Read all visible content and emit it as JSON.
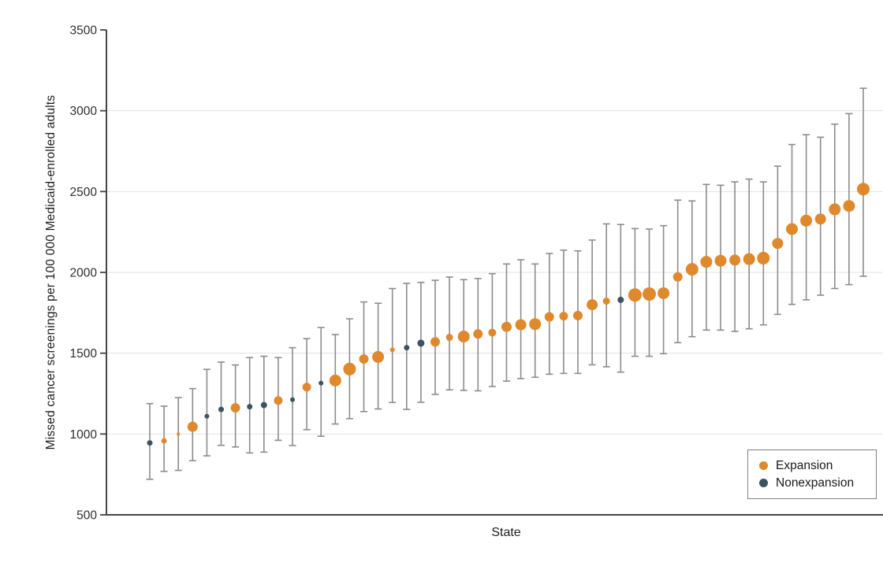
{
  "chart_data": {
    "type": "scatter",
    "title": "",
    "xlabel": "State",
    "ylabel": "Missed cancer screenings per 100 000 Medicaid-enrolled adults",
    "ylim": [
      500,
      3500
    ],
    "yticks": [
      500,
      1000,
      1500,
      2000,
      2500,
      3000,
      3500
    ],
    "grid": "horizontal-light-gray",
    "colors": {
      "expansion": "#E0892C",
      "nonexpansion": "#3B5462",
      "error_bar": "#8C8C8C",
      "axis": "#444444",
      "gridline": "#E3E3E3",
      "tick_label": "#2E2E2E"
    },
    "legend": {
      "position": "bottom-right",
      "items": [
        {
          "label": "Expansion",
          "group": "expansion"
        },
        {
          "label": "Nonexpansion",
          "group": "nonexpansion"
        }
      ]
    },
    "points": [
      {
        "group": "nonexpansion",
        "value": 945,
        "ci_low": 720,
        "ci_high": 1188,
        "size": 7
      },
      {
        "group": "expansion",
        "value": 958,
        "ci_low": 769,
        "ci_high": 1172,
        "size": 7
      },
      {
        "group": "expansion",
        "value": 1000,
        "ci_low": 775,
        "ci_high": 1225,
        "size": 4
      },
      {
        "group": "expansion",
        "value": 1045,
        "ci_low": 835,
        "ci_high": 1281,
        "size": 13
      },
      {
        "group": "nonexpansion",
        "value": 1110,
        "ci_low": 865,
        "ci_high": 1400,
        "size": 6
      },
      {
        "group": "nonexpansion",
        "value": 1152,
        "ci_low": 930,
        "ci_high": 1445,
        "size": 7
      },
      {
        "group": "expansion",
        "value": 1162,
        "ci_low": 920,
        "ci_high": 1427,
        "size": 12
      },
      {
        "group": "nonexpansion",
        "value": 1169,
        "ci_low": 883,
        "ci_high": 1473,
        "size": 7
      },
      {
        "group": "nonexpansion",
        "value": 1179,
        "ci_low": 888,
        "ci_high": 1481,
        "size": 8
      },
      {
        "group": "expansion",
        "value": 1207,
        "ci_low": 961,
        "ci_high": 1473,
        "size": 11
      },
      {
        "group": "nonexpansion",
        "value": 1212,
        "ci_low": 929,
        "ci_high": 1534,
        "size": 6
      },
      {
        "group": "expansion",
        "value": 1290,
        "ci_low": 1027,
        "ci_high": 1590,
        "size": 11
      },
      {
        "group": "nonexpansion",
        "value": 1315,
        "ci_low": 986,
        "ci_high": 1659,
        "size": 6
      },
      {
        "group": "expansion",
        "value": 1331,
        "ci_low": 1062,
        "ci_high": 1615,
        "size": 15
      },
      {
        "group": "expansion",
        "value": 1402,
        "ci_low": 1095,
        "ci_high": 1713,
        "size": 16
      },
      {
        "group": "expansion",
        "value": 1464,
        "ci_low": 1139,
        "ci_high": 1817,
        "size": 12
      },
      {
        "group": "expansion",
        "value": 1477,
        "ci_low": 1155,
        "ci_high": 1809,
        "size": 15
      },
      {
        "group": "expansion",
        "value": 1521,
        "ci_low": 1195,
        "ci_high": 1900,
        "size": 6
      },
      {
        "group": "nonexpansion",
        "value": 1534,
        "ci_low": 1152,
        "ci_high": 1932,
        "size": 7
      },
      {
        "group": "nonexpansion",
        "value": 1562,
        "ci_low": 1196,
        "ci_high": 1938,
        "size": 9
      },
      {
        "group": "expansion",
        "value": 1570,
        "ci_low": 1245,
        "ci_high": 1951,
        "size": 12
      },
      {
        "group": "expansion",
        "value": 1598,
        "ci_low": 1273,
        "ci_high": 1971,
        "size": 9
      },
      {
        "group": "expansion",
        "value": 1603,
        "ci_low": 1270,
        "ci_high": 1955,
        "size": 15
      },
      {
        "group": "expansion",
        "value": 1619,
        "ci_low": 1267,
        "ci_high": 1962,
        "size": 12
      },
      {
        "group": "expansion",
        "value": 1627,
        "ci_low": 1294,
        "ci_high": 1992,
        "size": 10
      },
      {
        "group": "expansion",
        "value": 1663,
        "ci_low": 1327,
        "ci_high": 2052,
        "size": 13
      },
      {
        "group": "expansion",
        "value": 1676,
        "ci_low": 1343,
        "ci_high": 2078,
        "size": 14
      },
      {
        "group": "expansion",
        "value": 1680,
        "ci_low": 1351,
        "ci_high": 2052,
        "size": 15
      },
      {
        "group": "expansion",
        "value": 1725,
        "ci_low": 1370,
        "ci_high": 2117,
        "size": 12
      },
      {
        "group": "expansion",
        "value": 1729,
        "ci_low": 1375,
        "ci_high": 2138,
        "size": 11
      },
      {
        "group": "expansion",
        "value": 1733,
        "ci_low": 1375,
        "ci_high": 2133,
        "size": 12
      },
      {
        "group": "expansion",
        "value": 1800,
        "ci_low": 1428,
        "ci_high": 2200,
        "size": 14
      },
      {
        "group": "expansion",
        "value": 1822,
        "ci_low": 1416,
        "ci_high": 2300,
        "size": 9
      },
      {
        "group": "nonexpansion",
        "value": 1830,
        "ci_low": 1383,
        "ci_high": 2296,
        "size": 8
      },
      {
        "group": "expansion",
        "value": 1860,
        "ci_low": 1481,
        "ci_high": 2271,
        "size": 17
      },
      {
        "group": "expansion",
        "value": 1866,
        "ci_low": 1481,
        "ci_high": 2268,
        "size": 17
      },
      {
        "group": "expansion",
        "value": 1871,
        "ci_low": 1497,
        "ci_high": 2289,
        "size": 15
      },
      {
        "group": "expansion",
        "value": 1972,
        "ci_low": 1565,
        "ci_high": 2447,
        "size": 12
      },
      {
        "group": "expansion",
        "value": 2019,
        "ci_low": 1602,
        "ci_high": 2442,
        "size": 16
      },
      {
        "group": "expansion",
        "value": 2065,
        "ci_low": 1643,
        "ci_high": 2544,
        "size": 15
      },
      {
        "group": "expansion",
        "value": 2072,
        "ci_low": 1643,
        "ci_high": 2539,
        "size": 15
      },
      {
        "group": "expansion",
        "value": 2076,
        "ci_low": 1635,
        "ci_high": 2560,
        "size": 14
      },
      {
        "group": "expansion",
        "value": 2082,
        "ci_low": 1651,
        "ci_high": 2577,
        "size": 15
      },
      {
        "group": "expansion",
        "value": 2088,
        "ci_low": 1675,
        "ci_high": 2560,
        "size": 16
      },
      {
        "group": "expansion",
        "value": 2179,
        "ci_low": 1740,
        "ci_high": 2657,
        "size": 14
      },
      {
        "group": "expansion",
        "value": 2268,
        "ci_low": 1802,
        "ci_high": 2791,
        "size": 15
      },
      {
        "group": "expansion",
        "value": 2320,
        "ci_low": 1830,
        "ci_high": 2852,
        "size": 15
      },
      {
        "group": "expansion",
        "value": 2330,
        "ci_low": 1859,
        "ci_high": 2836,
        "size": 14
      },
      {
        "group": "expansion",
        "value": 2390,
        "ci_low": 1900,
        "ci_high": 2917,
        "size": 15
      },
      {
        "group": "expansion",
        "value": 2411,
        "ci_low": 1924,
        "ci_high": 2982,
        "size": 15
      },
      {
        "group": "expansion",
        "value": 2515,
        "ci_low": 1976,
        "ci_high": 3139,
        "size": 16
      }
    ]
  }
}
